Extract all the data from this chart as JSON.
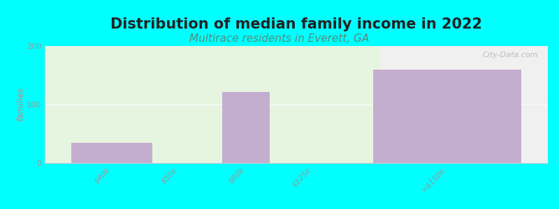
{
  "title": "Distribution of median family income in 2022",
  "subtitle": "Multirace residents in Everett, GA",
  "categories": [
    "$40k",
    "$50k",
    "$80k",
    "$125k",
    ">$150k"
  ],
  "values": [
    35,
    0,
    122,
    0,
    160
  ],
  "bar_color": "#c4aed0",
  "bar_positions": [
    1,
    2,
    3,
    4,
    6
  ],
  "bar_widths": [
    1.2,
    0.5,
    0.7,
    0.5,
    2.2
  ],
  "ylabel": "families",
  "ylim": [
    0,
    200
  ],
  "yticks": [
    0,
    100,
    200
  ],
  "xlim": [
    0.0,
    7.5
  ],
  "background_color": "#00FFFF",
  "plot_bg_color_left": "#e6f5e0",
  "plot_bg_color_right": "#f0f0f0",
  "bg_split_x": 5.0,
  "title_fontsize": 15,
  "subtitle_fontsize": 11,
  "subtitle_color": "#5a8a7a",
  "watermark": "City-Data.com"
}
